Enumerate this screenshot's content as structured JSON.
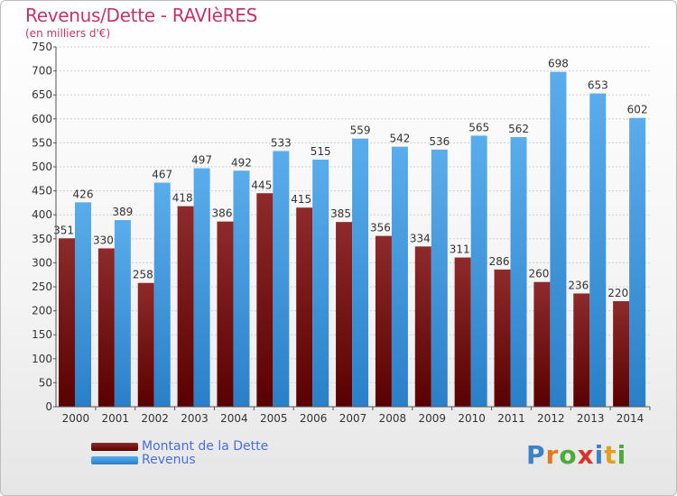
{
  "header": {
    "title": "Revenus/Dette - RAVIèRES",
    "subtitle": "(en milliers d'€)"
  },
  "legend": {
    "items": [
      {
        "label": "Montant de la Dette",
        "color": "#7b0f10"
      },
      {
        "label": "Revenus",
        "color": "#3a98e0"
      }
    ]
  },
  "logo": {
    "letters": [
      "P",
      "r",
      "o",
      "x",
      "i",
      "t",
      "i"
    ],
    "colors": [
      "#3b82c8",
      "#e07a1f",
      "#4aaa3a",
      "#d9342b",
      "#3b82c8",
      "#e0a020",
      "#4aaa3a"
    ]
  },
  "chart_data": {
    "type": "bar",
    "title": "Revenus/Dette - RAVIèRES",
    "subtitle": "(en milliers d'€)",
    "categories": [
      "2000",
      "2001",
      "2002",
      "2003",
      "2004",
      "2005",
      "2006",
      "2007",
      "2008",
      "2009",
      "2010",
      "2011",
      "2012",
      "2013",
      "2014"
    ],
    "series": [
      {
        "name": "Montant de la Dette",
        "color": "#7b0f10",
        "values": [
          351,
          330,
          258,
          418,
          386,
          445,
          415,
          385,
          356,
          334,
          311,
          286,
          260,
          236,
          220
        ]
      },
      {
        "name": "Revenus",
        "color": "#3a98e0",
        "values": [
          426,
          389,
          467,
          497,
          492,
          533,
          515,
          559,
          542,
          536,
          565,
          562,
          698,
          653,
          602
        ]
      }
    ],
    "ylim": [
      0,
      750
    ],
    "yticks": [
      0,
      50,
      100,
      150,
      200,
      250,
      300,
      350,
      400,
      450,
      500,
      550,
      600,
      650,
      700,
      750
    ],
    "grid": true,
    "legend_position": "bottom-left"
  }
}
